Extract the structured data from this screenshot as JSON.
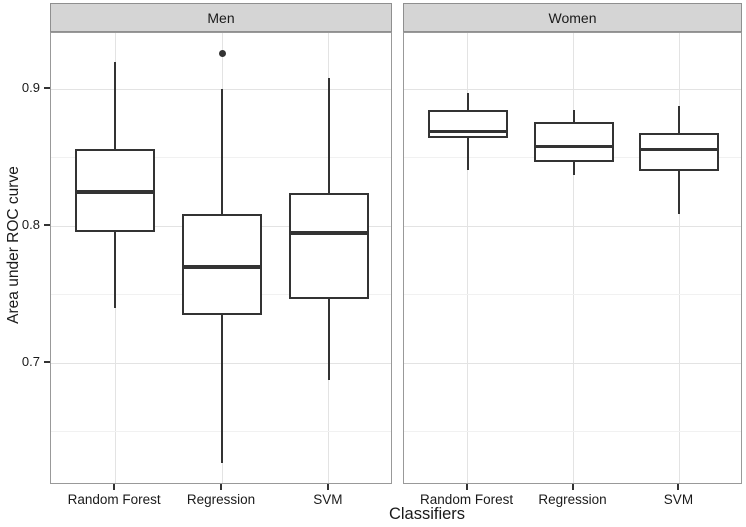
{
  "chart_data": {
    "type": "boxplot",
    "title": "",
    "xlabel": "Classifiers",
    "ylabel": "Area under ROC curve",
    "ylim": [
      0.611,
      0.941
    ],
    "y_ticks": [
      0.9,
      0.8,
      0.7
    ],
    "y_minor_ticks": [
      0.85,
      0.75,
      0.65
    ],
    "grid": true,
    "legend": false,
    "facets": [
      {
        "label": "Men",
        "categories": [
          "Random Forest",
          "Regression",
          "SVM"
        ],
        "boxes": [
          {
            "category": "Random Forest",
            "whisker_low": 0.74,
            "q1": 0.796,
            "median": 0.825,
            "q3": 0.856,
            "whisker_high": 0.92,
            "outliers": []
          },
          {
            "category": "Regression",
            "whisker_low": 0.627,
            "q1": 0.735,
            "median": 0.77,
            "q3": 0.809,
            "whisker_high": 0.9,
            "outliers": [
              0.926
            ]
          },
          {
            "category": "SVM",
            "whisker_low": 0.688,
            "q1": 0.747,
            "median": 0.795,
            "q3": 0.824,
            "whisker_high": 0.908,
            "outliers": []
          }
        ]
      },
      {
        "label": "Women",
        "categories": [
          "Random Forest",
          "Regression",
          "SVM"
        ],
        "boxes": [
          {
            "category": "Random Forest",
            "whisker_low": 0.841,
            "q1": 0.864,
            "median": 0.869,
            "q3": 0.885,
            "whisker_high": 0.897,
            "outliers": []
          },
          {
            "category": "Regression",
            "whisker_low": 0.837,
            "q1": 0.847,
            "median": 0.858,
            "q3": 0.876,
            "whisker_high": 0.885,
            "outliers": []
          },
          {
            "category": "SVM",
            "whisker_low": 0.809,
            "q1": 0.84,
            "median": 0.856,
            "q3": 0.868,
            "whisker_high": 0.888,
            "outliers": []
          }
        ]
      }
    ]
  },
  "colors": {
    "background": "#ffffff",
    "strip_bg": "#d5d5d5",
    "strip_border": "#8f8f8f",
    "panel_border": "#999999",
    "line": "#333333",
    "grid_major": "#e3e3e3",
    "grid_minor": "#f1f1f1",
    "text": "#1a1a1a"
  }
}
